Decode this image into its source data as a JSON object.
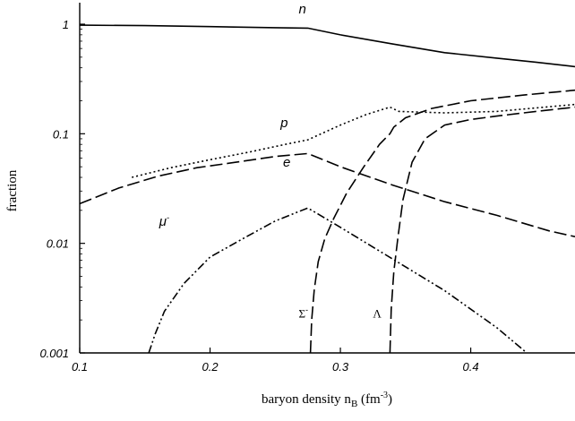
{
  "chart_data": {
    "type": "line",
    "xlabel_main": "baryon density n",
    "xlabel_sub": "B",
    "xlabel_unit_open": " (fm",
    "xlabel_unit_sup": "-3",
    "xlabel_unit_close": ")",
    "ylabel": "fraction",
    "xlim": [
      0.1,
      0.48
    ],
    "ylim": [
      0.001,
      1.5
    ],
    "yscale": "log",
    "grid": false,
    "x_ticks": [
      {
        "value": 0.1,
        "label": "0.1"
      },
      {
        "value": 0.2,
        "label": "0.2"
      },
      {
        "value": 0.3,
        "label": "0.3"
      },
      {
        "value": 0.4,
        "label": "0.4"
      }
    ],
    "y_ticks": [
      {
        "value": 1,
        "label": "1"
      },
      {
        "value": 0.1,
        "label": "0.1"
      },
      {
        "value": 0.01,
        "label": "0.01"
      },
      {
        "value": 0.001,
        "label": "0.001"
      }
    ],
    "series": [
      {
        "name": "n",
        "dash": "none",
        "x": [
          0.1,
          0.15,
          0.2,
          0.25,
          0.275,
          0.3,
          0.34,
          0.38,
          0.42,
          0.45,
          0.48
        ],
        "y": [
          0.98,
          0.97,
          0.95,
          0.93,
          0.92,
          0.8,
          0.66,
          0.55,
          0.49,
          0.45,
          0.41
        ]
      },
      {
        "name": "p",
        "dash": "2,3",
        "x": [
          0.14,
          0.17,
          0.2,
          0.23,
          0.26,
          0.275,
          0.3,
          0.32,
          0.338,
          0.345,
          0.38,
          0.42,
          0.48
        ],
        "y": [
          0.04,
          0.049,
          0.058,
          0.068,
          0.081,
          0.088,
          0.12,
          0.15,
          0.175,
          0.16,
          0.155,
          0.16,
          0.185
        ]
      },
      {
        "name": "e",
        "dash": "14,5",
        "x": [
          0.1,
          0.13,
          0.16,
          0.19,
          0.22,
          0.25,
          0.275,
          0.3,
          0.34,
          0.38,
          0.42,
          0.46,
          0.48
        ],
        "y": [
          0.023,
          0.032,
          0.041,
          0.049,
          0.055,
          0.062,
          0.066,
          0.05,
          0.034,
          0.024,
          0.018,
          0.013,
          0.0115
        ]
      },
      {
        "name": "μ⁻",
        "dash": "9,3,2,3,2,3",
        "x": [
          0.153,
          0.158,
          0.165,
          0.18,
          0.2,
          0.225,
          0.25,
          0.275,
          0.3,
          0.34,
          0.38,
          0.42,
          0.443
        ],
        "y": [
          0.001,
          0.0015,
          0.0024,
          0.0043,
          0.0075,
          0.011,
          0.016,
          0.021,
          0.014,
          0.0072,
          0.0037,
          0.0017,
          0.001
        ]
      },
      {
        "name": "Σ⁻",
        "dash": "14,5",
        "x": [
          0.277,
          0.278,
          0.28,
          0.283,
          0.288,
          0.295,
          0.305,
          0.318,
          0.33,
          0.338,
          0.341,
          0.35,
          0.37,
          0.4,
          0.44,
          0.48
        ],
        "y": [
          0.001,
          0.002,
          0.0038,
          0.0068,
          0.011,
          0.017,
          0.029,
          0.05,
          0.08,
          0.1,
          0.115,
          0.14,
          0.17,
          0.2,
          0.225,
          0.25
        ]
      },
      {
        "name": "Λ",
        "dash": "14,5",
        "x": [
          0.338,
          0.339,
          0.341,
          0.344,
          0.348,
          0.355,
          0.365,
          0.38,
          0.4,
          0.42,
          0.45,
          0.48
        ],
        "y": [
          0.001,
          0.0025,
          0.0055,
          0.011,
          0.025,
          0.055,
          0.09,
          0.12,
          0.135,
          0.145,
          0.16,
          0.175
        ]
      }
    ],
    "labels": [
      {
        "text": "n",
        "x": 0.268,
        "y": 1.25,
        "style": "italic"
      },
      {
        "text": "p",
        "x": 0.254,
        "y": 0.115,
        "style": "italic"
      },
      {
        "text": "e",
        "x": 0.256,
        "y": 0.05,
        "style": "italic"
      },
      {
        "text": "μ",
        "sup": "-",
        "x": 0.161,
        "y": 0.0145,
        "style": "italic"
      },
      {
        "text": "Σ",
        "sup": "-",
        "x": 0.268,
        "y": 0.0021,
        "style": "serif"
      },
      {
        "text": "Λ",
        "x": 0.325,
        "y": 0.0021,
        "style": "serif"
      }
    ]
  }
}
